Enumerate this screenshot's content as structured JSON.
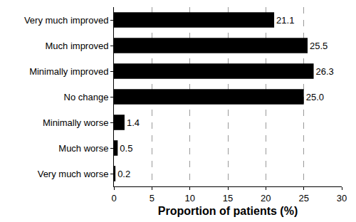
{
  "chart_data": {
    "type": "bar",
    "orientation": "horizontal",
    "xlabel": "Proportion of patients (%)",
    "categories": [
      "Very much improved",
      "Much improved",
      "Minimally improved",
      "No change",
      "Minimally worse",
      "Much worse",
      "Very much worse"
    ],
    "values": [
      21.1,
      25.5,
      26.3,
      25.0,
      1.4,
      0.5,
      0.2
    ],
    "value_labels": [
      "21.1",
      "25.5",
      "26.3",
      "25.0",
      "1.4",
      "0.5",
      "0.2"
    ],
    "color": "#000000",
    "xlim": [
      0,
      30
    ],
    "xticks": [
      0,
      5,
      10,
      15,
      20,
      25,
      30
    ],
    "grid": true,
    "data_labels": true
  }
}
